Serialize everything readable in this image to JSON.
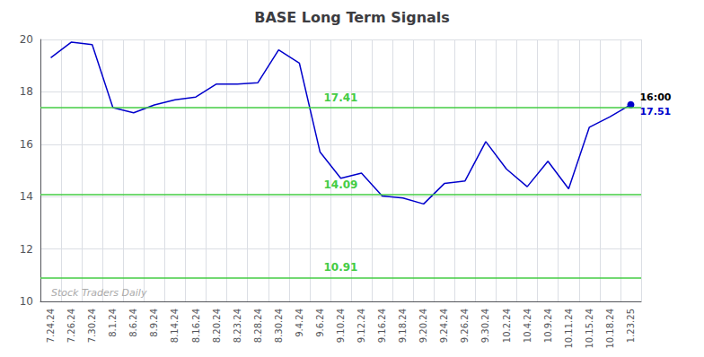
{
  "chart_data": {
    "type": "line",
    "title": "BASE Long Term Signals",
    "categories": [
      "7.24.24",
      "7.26.24",
      "7.30.24",
      "8.1.24",
      "8.6.24",
      "8.9.24",
      "8.14.24",
      "8.16.24",
      "8.20.24",
      "8.23.24",
      "8.28.24",
      "8.30.24",
      "9.4.24",
      "9.6.24",
      "9.10.24",
      "9.12.24",
      "9.16.24",
      "9.18.24",
      "9.20.24",
      "9.24.24",
      "9.26.24",
      "9.30.24",
      "10.2.24",
      "10.4.24",
      "10.9.24",
      "10.11.24",
      "10.15.24",
      "10.18.24",
      "1.23.25"
    ],
    "values": [
      19.3,
      19.9,
      19.8,
      17.4,
      17.2,
      17.5,
      17.7,
      17.8,
      18.3,
      18.3,
      18.35,
      19.6,
      19.1,
      15.7,
      14.7,
      14.9,
      14.02,
      13.95,
      13.72,
      14.5,
      14.6,
      16.1,
      15.05,
      14.38,
      15.35,
      14.3,
      16.65,
      17.05,
      17.51
    ],
    "color": "#0000cc",
    "hlines": [
      {
        "value": 17.41,
        "label": "17.41"
      },
      {
        "value": 14.09,
        "label": "14.09"
      },
      {
        "value": 10.91,
        "label": "10.91"
      }
    ],
    "hline_color": "#44cc44",
    "last_point_labels": [
      "16:00",
      "17.51"
    ],
    "watermark": "Stock Traders Daily",
    "ylim": [
      10,
      20
    ],
    "yticks": [
      10,
      12,
      14,
      16,
      18,
      20
    ],
    "grid": true
  }
}
